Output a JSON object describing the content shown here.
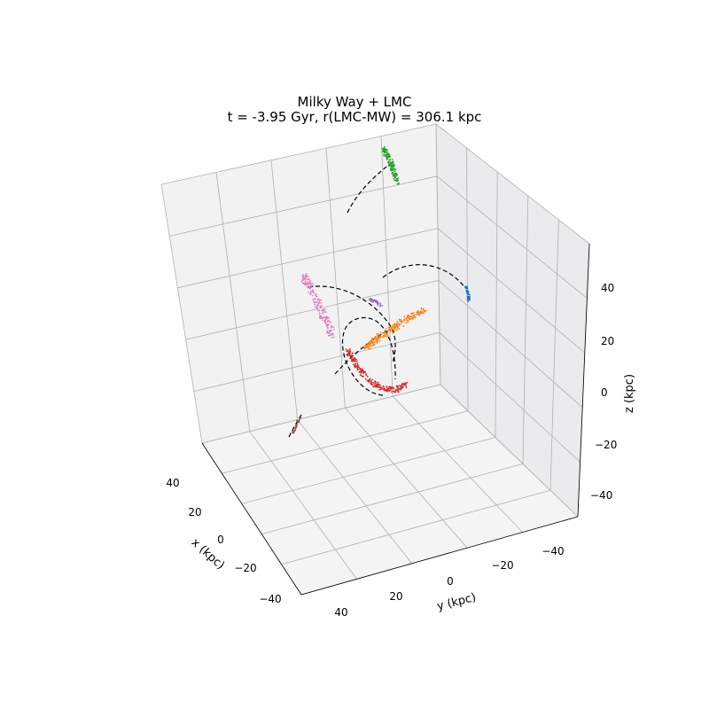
{
  "chart_data": {
    "type": "scatter",
    "title_line1": "Milky Way + LMC",
    "title_line2": "t = -3.95 Gyr, r(LMC-MW) = 306.1 kpc",
    "xlabel": "x (kpc)",
    "ylabel": "y (kpc)",
    "zlabel": "z (kpc)",
    "xlim": [
      -50,
      50
    ],
    "ylim": [
      -50,
      50
    ],
    "zlim": [
      -50,
      50
    ],
    "x_ticks": [
      "40",
      "20",
      "0",
      "−20",
      "−40"
    ],
    "y_ticks": [
      "40",
      "20",
      "0",
      "−20",
      "−40"
    ],
    "z_ticks": [
      "40",
      "20",
      "0",
      "−20",
      "−40"
    ],
    "grid": true,
    "orbit_style": "dashed black",
    "streams": [
      {
        "color": "#2ca02c",
        "orbit": "bend"
      },
      {
        "color": "#1f77b4",
        "orbit": "arc"
      },
      {
        "color": "#e377c2",
        "orbit": "arc"
      },
      {
        "color": "#9467bd",
        "orbit": "none"
      },
      {
        "color": "#ff7f0e",
        "orbit": "loop"
      },
      {
        "color": "#d62728",
        "orbit": "loop"
      },
      {
        "color": "#8c564b",
        "orbit": "short"
      }
    ]
  }
}
